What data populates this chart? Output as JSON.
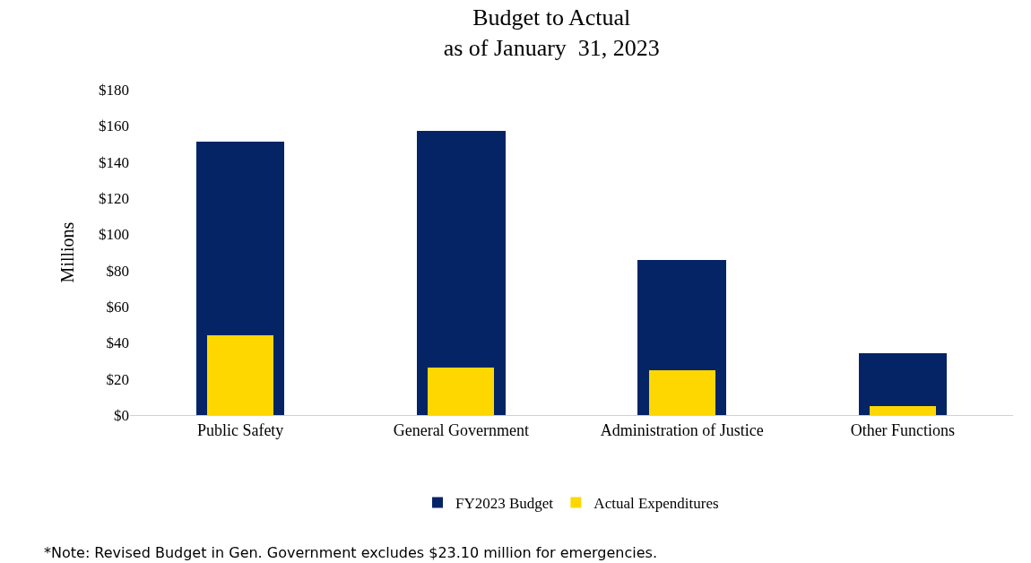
{
  "chart_data": {
    "type": "bar",
    "title": "Budget to Actual\nas of January  31, 2023",
    "ylabel": "Millions",
    "categories": [
      "Public Safety",
      "General Government",
      "Administration of Justice",
      "Other Functions"
    ],
    "series": [
      {
        "name": "FY2023 Budget",
        "color": "#052466",
        "values": [
          151,
          157,
          86,
          34
        ]
      },
      {
        "name": "Actual Expenditures",
        "color": "#ffd700",
        "values": [
          44,
          26.5,
          25,
          5
        ]
      }
    ],
    "ylim": [
      0,
      180
    ],
    "yticks": [
      {
        "value": 0,
        "label": "$0"
      },
      {
        "value": 20,
        "label": "$20"
      },
      {
        "value": 40,
        "label": "$40"
      },
      {
        "value": 60,
        "label": "$60"
      },
      {
        "value": 80,
        "label": "$80"
      },
      {
        "value": 100,
        "label": "$100"
      },
      {
        "value": 120,
        "label": "$120"
      },
      {
        "value": 140,
        "label": "$140"
      },
      {
        "value": 160,
        "label": "$160"
      },
      {
        "value": 180,
        "label": "$180"
      }
    ],
    "grid": false,
    "legend": "bottom",
    "annotations": [
      "*Note: Revised Budget in Gen. Government excludes $23.10 million for emergencies."
    ]
  }
}
